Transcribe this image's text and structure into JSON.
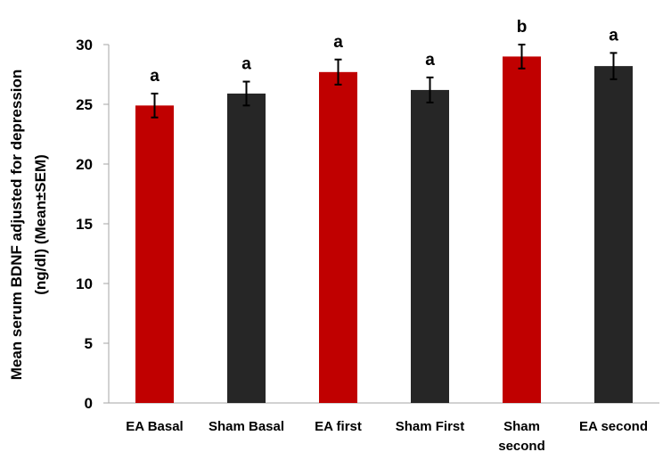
{
  "chart_data": {
    "type": "bar",
    "title": "",
    "xlabel": "",
    "ylabel_line1": "Mean serum BDNF adjusted for depression",
    "ylabel_line2": "(ng/dl) (Mean±SEM)",
    "ylim": [
      0,
      30
    ],
    "yticks": [
      0,
      5,
      10,
      15,
      20,
      25,
      30
    ],
    "grid": false,
    "categories": [
      [
        "EA Basal"
      ],
      [
        "Sham Basal"
      ],
      [
        "EA first"
      ],
      [
        "Sham First"
      ],
      [
        "Sham",
        "second"
      ],
      [
        "EA second"
      ]
    ],
    "values": [
      24.9,
      25.9,
      27.7,
      26.2,
      29.0,
      28.2
    ],
    "errors": [
      1.0,
      1.0,
      1.05,
      1.05,
      1.0,
      1.1
    ],
    "significance_labels": [
      "a",
      "a",
      "a",
      "a",
      "b",
      "a"
    ],
    "bar_colors": [
      "#c00000",
      "#262626",
      "#c00000",
      "#262626",
      "#c00000",
      "#262626"
    ]
  }
}
